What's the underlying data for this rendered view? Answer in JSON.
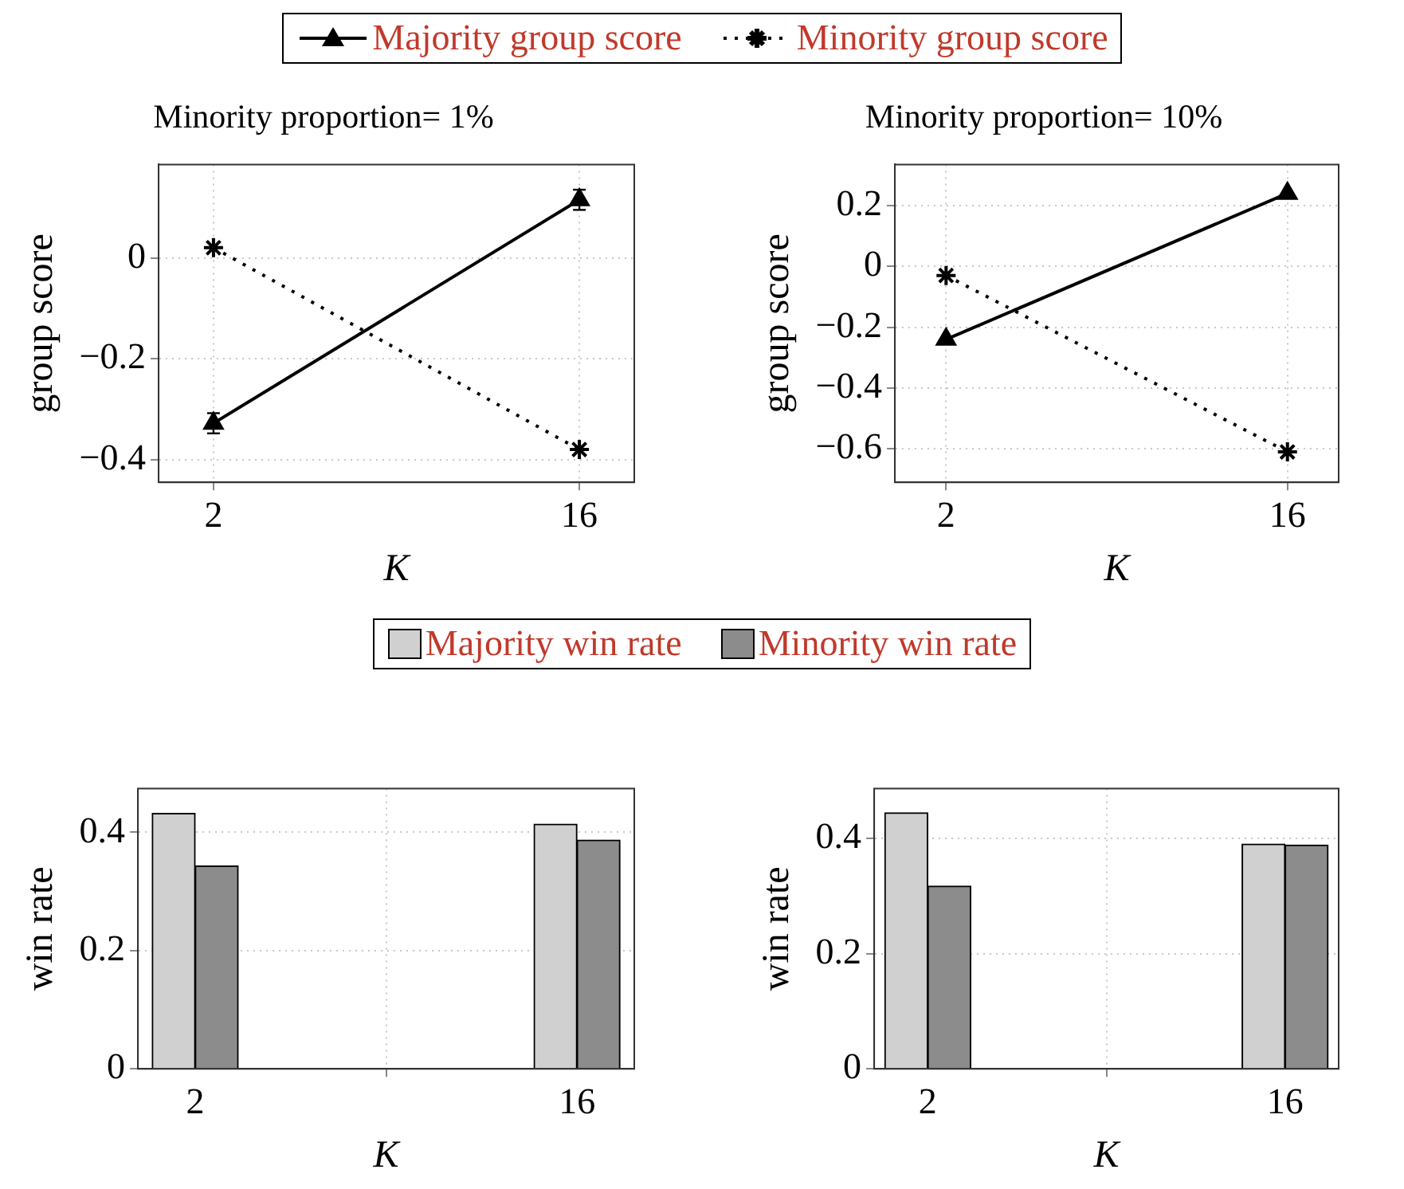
{
  "chart_data": [
    {
      "type": "line",
      "title": "Minority proportion= 1%",
      "xlabel": "K",
      "ylabel": "group score",
      "categories": [
        "2",
        "16"
      ],
      "ylim": [
        -0.445,
        0.185
      ],
      "yticks": [
        -0.4,
        -0.2,
        0
      ],
      "grid": true,
      "legend": "top",
      "series": [
        {
          "name": "Majority group score",
          "color": "#000000",
          "values": [
            -0.328,
            0.115
          ],
          "errors": [
            0.02,
            0.02
          ],
          "marker": "triangle",
          "line_style": "solid"
        },
        {
          "name": "Minority group score",
          "color": "#000000",
          "values": [
            0.02,
            -0.38
          ],
          "marker": "cross",
          "line_style": "dotted"
        }
      ]
    },
    {
      "type": "line",
      "title": "Minority proportion= 10%",
      "xlabel": "K",
      "ylabel": "group score",
      "categories": [
        "2",
        "16"
      ],
      "ylim": [
        -0.71,
        0.335
      ],
      "yticks": [
        -0.6,
        -0.4,
        -0.2,
        0,
        0.2
      ],
      "grid": true,
      "series": [
        {
          "color": "#000000",
          "values": [
            -0.24,
            0.24
          ],
          "marker": "triangle",
          "line_style": "solid"
        },
        {
          "color": "#000000",
          "values": [
            -0.03,
            -0.61
          ],
          "marker": "cross",
          "line_style": "dotted"
        }
      ]
    },
    {
      "type": "bar",
      "xlabel": "K",
      "ylabel": "win rate",
      "categories": [
        "2",
        "16"
      ],
      "ylim": [
        0,
        0.474
      ],
      "yticks": [
        0,
        0.2,
        0.4
      ],
      "grid": true,
      "legend": "top",
      "series": [
        {
          "name": "Majority win rate",
          "color": "#d0d0d0",
          "values": [
            0.432,
            0.414
          ]
        },
        {
          "name": "Minority win rate",
          "color": "#8c8c8c",
          "values": [
            0.343,
            0.387
          ]
        }
      ]
    },
    {
      "type": "bar",
      "xlabel": "K",
      "ylabel": "win rate",
      "categories": [
        "2",
        "16"
      ],
      "ylim": [
        0,
        0.486
      ],
      "yticks": [
        0,
        0.2,
        0.4
      ],
      "grid": true,
      "series": [
        {
          "color": "#d0d0d0",
          "values": [
            0.444,
            0.39
          ]
        },
        {
          "color": "#8c8c8c",
          "values": [
            0.317,
            0.388
          ]
        }
      ]
    }
  ]
}
